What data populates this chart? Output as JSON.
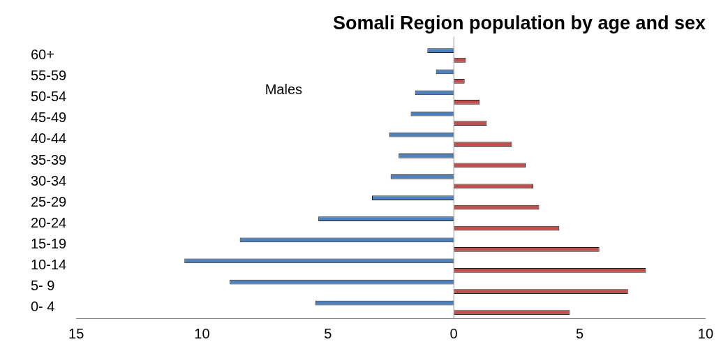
{
  "chart_data": {
    "type": "bar",
    "orientation": "horizontal",
    "title": "Somali Region population by age and sex",
    "categories": [
      "60+",
      "55-59",
      "50-54",
      "45-49",
      "40-44",
      "35-39",
      "30-34",
      "25-29",
      "20-24",
      "15-19",
      "10-14",
      "5- 9",
      "0- 4"
    ],
    "series": [
      {
        "color": "#4f81bd",
        "values": [
          -1.05,
          -0.71,
          -1.54,
          -1.71,
          -2.56,
          -2.19,
          -2.51,
          -3.25,
          -5.38,
          -8.5,
          -10.7,
          -8.9,
          -5.5
        ]
      },
      {
        "color": "#c0504d",
        "values": [
          0.48,
          0.43,
          1.03,
          1.31,
          2.31,
          2.85,
          3.16,
          3.39,
          4.19,
          5.78,
          7.63,
          6.92,
          4.61
        ]
      }
    ],
    "xlim": [
      -15,
      10
    ],
    "xticks": [
      {
        "value": -15,
        "label": "15"
      },
      {
        "value": -10,
        "label": "10"
      },
      {
        "value": -5,
        "label": "5"
      },
      0,
      5,
      10
    ],
    "ref_lines": [
      {
        "axis": "x",
        "value": 0
      }
    ],
    "annotations": [
      "Males"
    ],
    "grid": false,
    "legend": false
  }
}
